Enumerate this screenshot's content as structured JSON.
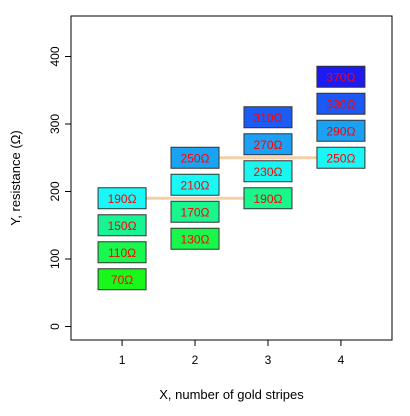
{
  "chart_data": {
    "type": "scatter",
    "xlabel": "X, number of gold stripes",
    "ylabel": "Y, resistance (Ω)",
    "xlim": [
      0.3,
      4.7
    ],
    "ylim": [
      -20,
      460
    ],
    "xticks": [
      "1",
      "2",
      "3",
      "4"
    ],
    "yticks": [
      "0",
      "100",
      "200",
      "300",
      "400"
    ],
    "grid": false,
    "colors": {
      "label": "#ff0000",
      "box_border": "#333333",
      "connector": "#f5cfa8"
    },
    "connectors": [
      {
        "x1": 1,
        "x2": 2,
        "y": 190
      },
      {
        "x1": 2,
        "x2": 3,
        "y": 190
      },
      {
        "x1": 2,
        "x2": 3,
        "y": 250
      },
      {
        "x1": 3,
        "x2": 4,
        "y": 250
      }
    ],
    "points": [
      {
        "x": 1,
        "y": 70,
        "label": "70Ω",
        "color": "#19f81a"
      },
      {
        "x": 1,
        "y": 110,
        "label": "110Ω",
        "color": "#19f84f"
      },
      {
        "x": 1,
        "y": 150,
        "label": "150Ω",
        "color": "#19f394"
      },
      {
        "x": 1,
        "y": 190,
        "label": "190Ω",
        "color": "#19f8f8"
      },
      {
        "x": 2,
        "y": 130,
        "label": "130Ω",
        "color": "#19f84a"
      },
      {
        "x": 2,
        "y": 170,
        "label": "170Ω",
        "color": "#19f68e"
      },
      {
        "x": 2,
        "y": 210,
        "label": "210Ω",
        "color": "#19f8f4"
      },
      {
        "x": 2,
        "y": 250,
        "label": "250Ω",
        "color": "#1ba3f3"
      },
      {
        "x": 3,
        "y": 190,
        "label": "190Ω",
        "color": "#19f68c"
      },
      {
        "x": 3,
        "y": 230,
        "label": "230Ω",
        "color": "#19f6f0"
      },
      {
        "x": 3,
        "y": 270,
        "label": "270Ω",
        "color": "#1aa1f5"
      },
      {
        "x": 3,
        "y": 310,
        "label": "310Ω",
        "color": "#1c5cf5"
      },
      {
        "x": 4,
        "y": 250,
        "label": "250Ω",
        "color": "#19f6f6"
      },
      {
        "x": 4,
        "y": 290,
        "label": "290Ω",
        "color": "#1aa1f4"
      },
      {
        "x": 4,
        "y": 330,
        "label": "330Ω",
        "color": "#1c58f4"
      },
      {
        "x": 4,
        "y": 370,
        "label": "370Ω",
        "color": "#1b1bf2"
      }
    ]
  }
}
